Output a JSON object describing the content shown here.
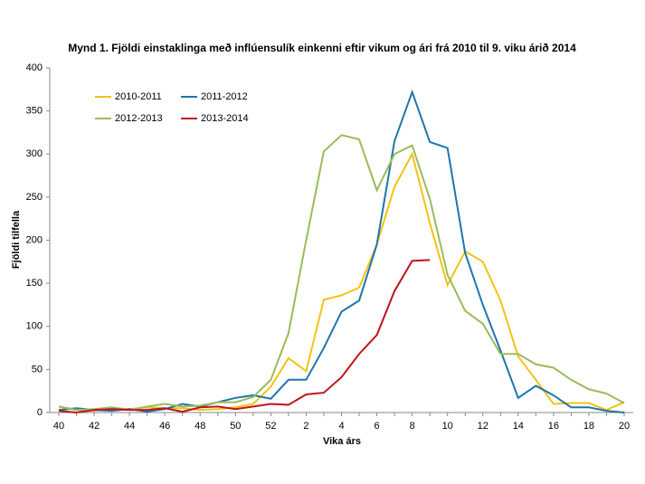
{
  "chart_data": {
    "type": "line",
    "title": "Mynd 1. Fjöldi einstaklinga með inflúensulík einkenni eftir vikum og ári frá 2010 til 9. viku árið 2014",
    "x_label": "Vika árs",
    "y_label": "Fjöldi tilfella",
    "categories": [
      40,
      null,
      42,
      null,
      44,
      null,
      46,
      null,
      48,
      null,
      50,
      null,
      52,
      null,
      2,
      null,
      4,
      null,
      6,
      null,
      8,
      null,
      10,
      null,
      12,
      null,
      14,
      null,
      16,
      null,
      18,
      null,
      20
    ],
    "series": [
      {
        "name": "2010-2011",
        "color": "#f2c314",
        "values": [
          7,
          3,
          2,
          5,
          4,
          6,
          5,
          5,
          3,
          4,
          6,
          10,
          30,
          63,
          48,
          131,
          136,
          145,
          195,
          262,
          300,
          220,
          148,
          187,
          175,
          130,
          65,
          38,
          10,
          11,
          11,
          3,
          12
        ]
      },
      {
        "name": "2011-2012",
        "color": "#1f74ad",
        "values": [
          3,
          5,
          3,
          2,
          4,
          1,
          4,
          10,
          7,
          12,
          17,
          20,
          16,
          38,
          38,
          75,
          117,
          130,
          195,
          315,
          372,
          314,
          307,
          185,
          125,
          72,
          17,
          31,
          20,
          6,
          6,
          2,
          0
        ]
      },
      {
        "name": "2012-2013",
        "color": "#9bbb59",
        "values": [
          7,
          3,
          4,
          6,
          3,
          7,
          10,
          7,
          8,
          12,
          12,
          18,
          38,
          92,
          200,
          303,
          322,
          317,
          258,
          300,
          310,
          248,
          160,
          118,
          103,
          68,
          68,
          56,
          52,
          38,
          27,
          22,
          11
        ]
      },
      {
        "name": "2013-2014",
        "color": "#c0141e",
        "values": [
          2,
          0,
          3,
          4,
          3,
          3,
          5,
          1,
          6,
          7,
          4,
          7,
          10,
          9,
          21,
          23,
          41,
          68,
          90,
          141,
          176,
          177,
          null,
          null,
          null,
          null,
          null,
          null,
          null,
          null,
          null,
          null,
          null
        ]
      }
    ],
    "ylim": [
      0,
      400
    ],
    "yticks": [
      0,
      50,
      100,
      150,
      200,
      250,
      300,
      350,
      400
    ],
    "grid": false,
    "legend": "upper left"
  }
}
